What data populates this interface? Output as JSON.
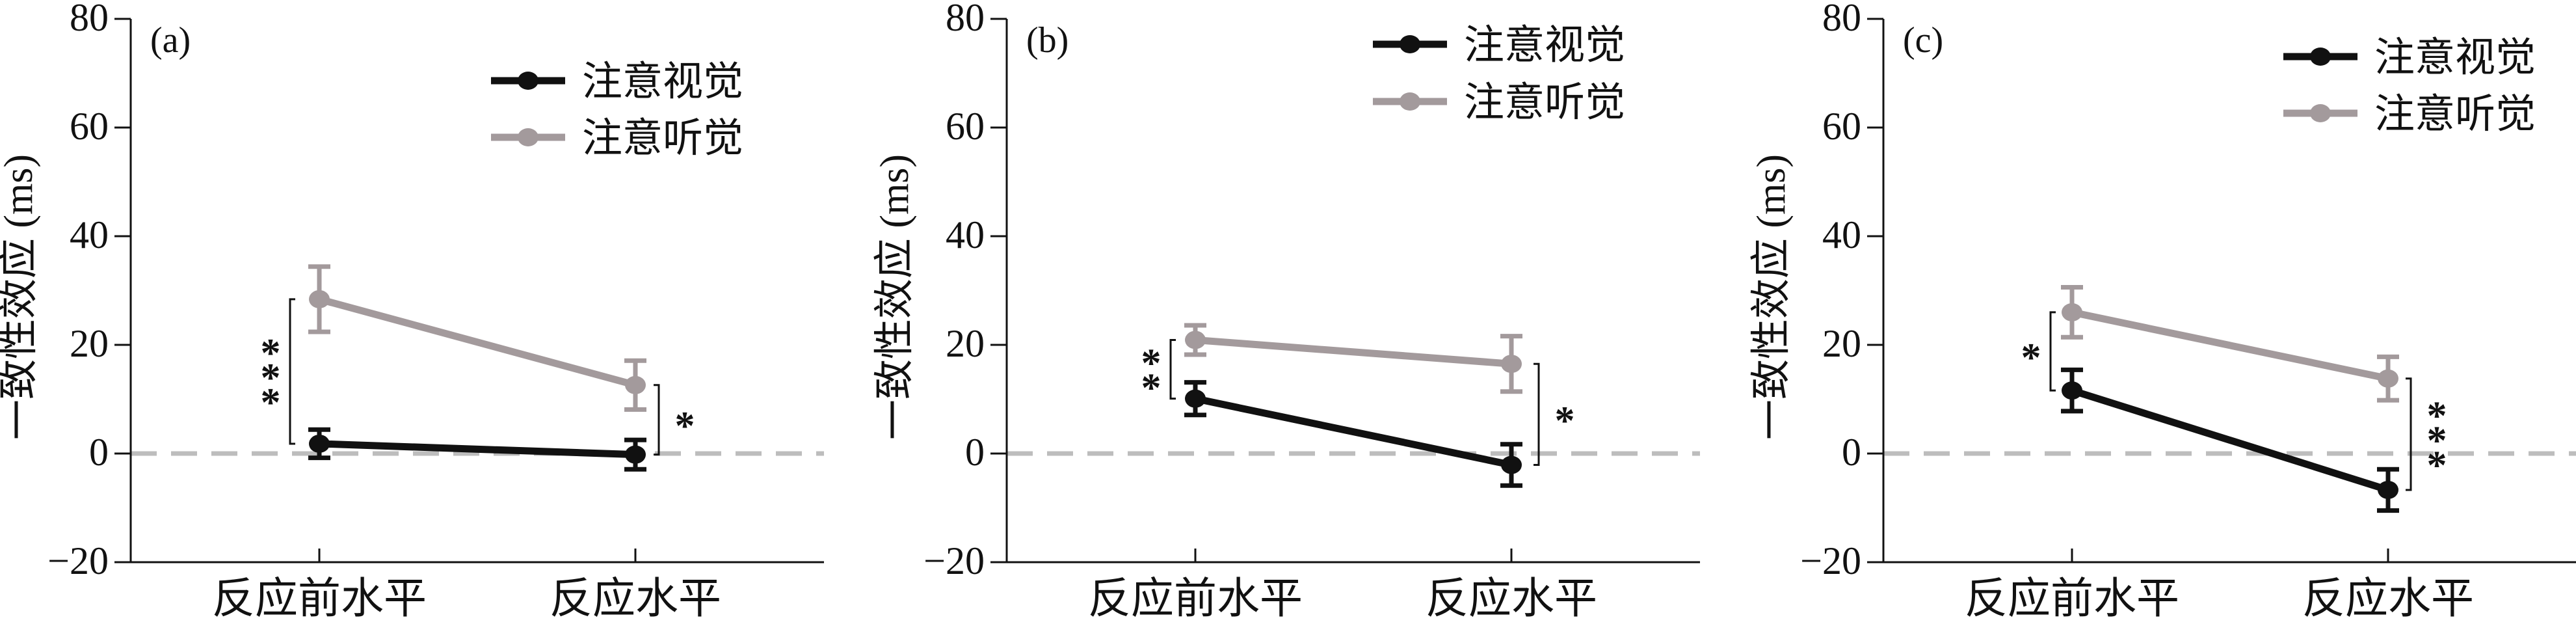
{
  "colors": {
    "visual": "#111111",
    "auditory": "#a39a9c",
    "zero_line": "#bdbdbd",
    "axis": "#111111"
  },
  "chart_data": [
    {
      "type": "line",
      "panel_label": "(a)",
      "ylabel": "一致性效应 (ms)",
      "categories": [
        "反应前水平",
        "反应水平"
      ],
      "ylim": [
        -20,
        80
      ],
      "yticks": [
        -20,
        0,
        20,
        40,
        60,
        80
      ],
      "ytick_labels": [
        "−20",
        "0",
        "20",
        "40",
        "60",
        "80"
      ],
      "legend": {
        "placement": "top-right"
      },
      "series": [
        {
          "name": "注意视觉",
          "key": "visual",
          "values": [
            1.8,
            -0.2
          ],
          "errors": [
            2.6,
            2.7
          ]
        },
        {
          "name": "注意听觉",
          "key": "auditory",
          "values": [
            28.4,
            12.6
          ],
          "errors": [
            6.0,
            4.5
          ]
        }
      ],
      "significance": [
        {
          "category": 0,
          "range": [
            1.8,
            28.4
          ],
          "label": "***"
        },
        {
          "category": 1,
          "range": [
            -0.2,
            12.6
          ],
          "label": "*"
        }
      ]
    },
    {
      "type": "line",
      "panel_label": "(b)",
      "ylabel": "一致性效应 (ms)",
      "categories": [
        "反应前水平",
        "反应水平"
      ],
      "ylim": [
        -20,
        80
      ],
      "yticks": [
        -20,
        0,
        20,
        40,
        60,
        80
      ],
      "ytick_labels": [
        "−20",
        "0",
        "20",
        "40",
        "60",
        "80"
      ],
      "legend": {
        "placement": "top-right"
      },
      "series": [
        {
          "name": "注意视觉",
          "key": "visual",
          "values": [
            10.1,
            -2.1
          ],
          "errors": [
            3.0,
            3.8
          ]
        },
        {
          "name": "注意听觉",
          "key": "auditory",
          "values": [
            20.9,
            16.5
          ],
          "errors": [
            2.7,
            5.1
          ]
        }
      ],
      "significance": [
        {
          "category": 0,
          "range": [
            10.1,
            20.9
          ],
          "label": "**"
        },
        {
          "category": 1,
          "range": [
            -2.1,
            16.5
          ],
          "label": "*"
        }
      ]
    },
    {
      "type": "line",
      "panel_label": "(c)",
      "ylabel": "一致性效应 (ms)",
      "categories": [
        "反应前水平",
        "反应水平"
      ],
      "ylim": [
        -20,
        80
      ],
      "yticks": [
        -20,
        0,
        20,
        40,
        60,
        80
      ],
      "ytick_labels": [
        "−20",
        "0",
        "20",
        "40",
        "60",
        "80"
      ],
      "legend": {
        "placement": "top-right"
      },
      "series": [
        {
          "name": "注意视觉",
          "key": "visual",
          "values": [
            11.6,
            -6.7
          ],
          "errors": [
            3.8,
            3.8
          ]
        },
        {
          "name": "注意听觉",
          "key": "auditory",
          "values": [
            26.0,
            13.8
          ],
          "errors": [
            4.6,
            4.0
          ]
        }
      ],
      "significance": [
        {
          "category": 0,
          "range": [
            11.6,
            26.0
          ],
          "label": "*"
        },
        {
          "category": 1,
          "range": [
            -6.7,
            13.8
          ],
          "label": "***"
        }
      ]
    }
  ]
}
